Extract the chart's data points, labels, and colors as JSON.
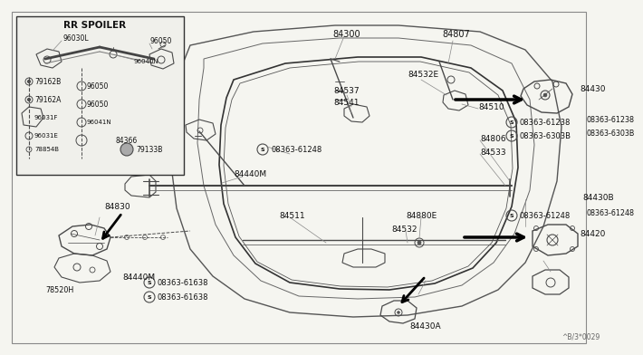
{
  "bg_color": "#f5f5f0",
  "line_color": "#4a4a4a",
  "text_color": "#111111",
  "arrow_color": "#000000",
  "fig_width": 6.4,
  "fig_height": 3.72,
  "footnote": "^B/3*0029"
}
